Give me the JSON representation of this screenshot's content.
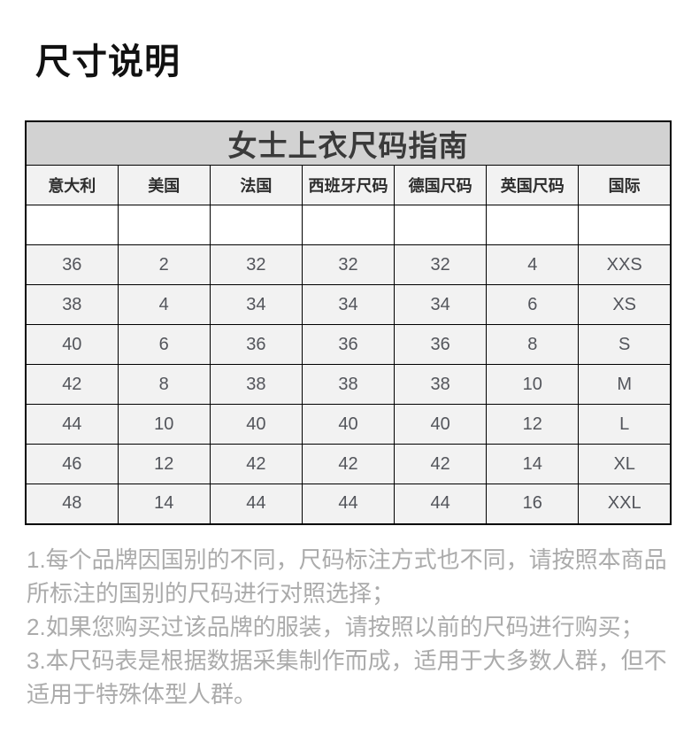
{
  "page": {
    "title": "尺寸说明"
  },
  "size_table": {
    "title": "女士上衣尺码指南",
    "headers": [
      "意大利",
      "美国",
      "法国",
      "西班牙尺码",
      "德国尺码",
      "英国尺码",
      "国际"
    ],
    "rows": [
      [
        "36",
        "2",
        "32",
        "32",
        "32",
        "4",
        "XXS"
      ],
      [
        "38",
        "4",
        "34",
        "34",
        "34",
        "6",
        "XS"
      ],
      [
        "40",
        "6",
        "36",
        "36",
        "36",
        "8",
        "S"
      ],
      [
        "42",
        "8",
        "38",
        "38",
        "38",
        "10",
        "M"
      ],
      [
        "44",
        "10",
        "40",
        "40",
        "40",
        "12",
        "L"
      ],
      [
        "46",
        "12",
        "42",
        "42",
        "42",
        "14",
        "XL"
      ],
      [
        "48",
        "14",
        "44",
        "44",
        "44",
        "16",
        "XXL"
      ]
    ]
  },
  "notes": [
    "1.每个品牌因国别的不同，尺码标注方式也不同，请按照本商品所标注的国别的尺码进行对照选择；",
    "2.如果您购买过该品牌的服装，请按照以前的尺码进行购买；",
    "3.本尺码表是根据数据采集制作而成，适用于大多数人群，但不适用于特殊体型人群。"
  ],
  "chart_data": {
    "type": "table",
    "title": "女士上衣尺码指南",
    "columns": [
      "意大利",
      "美国",
      "法国",
      "西班牙尺码",
      "德国尺码",
      "英国尺码",
      "国际"
    ],
    "rows": [
      [
        "36",
        "2",
        "32",
        "32",
        "32",
        "4",
        "XXS"
      ],
      [
        "38",
        "4",
        "34",
        "34",
        "34",
        "6",
        "XS"
      ],
      [
        "40",
        "6",
        "36",
        "36",
        "36",
        "8",
        "S"
      ],
      [
        "42",
        "8",
        "38",
        "38",
        "38",
        "10",
        "M"
      ],
      [
        "44",
        "10",
        "40",
        "40",
        "40",
        "12",
        "L"
      ],
      [
        "46",
        "12",
        "42",
        "42",
        "42",
        "14",
        "XL"
      ],
      [
        "48",
        "14",
        "44",
        "44",
        "44",
        "16",
        "XXL"
      ]
    ]
  },
  "colors": {
    "table_title_bg": "#d2d2d2",
    "cell_bg": "#f2f2f2",
    "empty_row_bg": "#ffffff",
    "border": "#000000",
    "header_text": "#2d2d2d",
    "cell_text": "#53555b",
    "note_text": "#ababab",
    "page_title_text": "#111111"
  }
}
